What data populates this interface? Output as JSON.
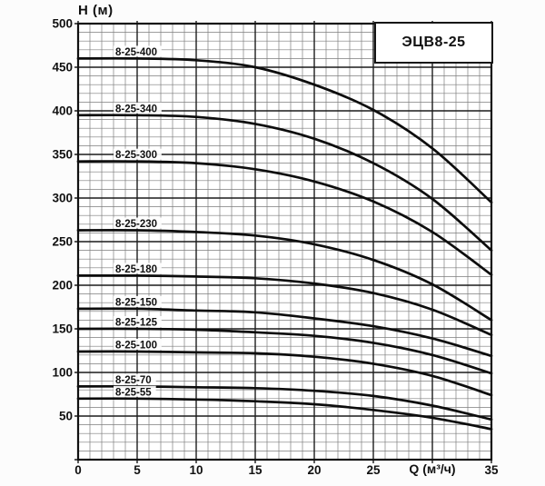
{
  "chart_data": {
    "type": "line",
    "title": "ЭЦВ8-25",
    "xlabel": "Q (м³/ч)",
    "ylabel": "H (м)",
    "xlim": [
      0,
      35
    ],
    "ylim": [
      0,
      500
    ],
    "x_major_step": 5,
    "x_minor_step": 1,
    "y_major_step": 50,
    "y_minor_step": 10,
    "grid": true,
    "legend_position": "labels-on-curves",
    "x_tick_labels": [
      {
        "value": 0,
        "label": "0"
      },
      {
        "value": 5,
        "label": "5"
      },
      {
        "value": 10,
        "label": "10"
      },
      {
        "value": 15,
        "label": "15"
      },
      {
        "value": 20,
        "label": "20"
      },
      {
        "value": 25,
        "label": "25"
      },
      {
        "value": 35,
        "label": "35"
      }
    ],
    "y_tick_labels": [
      {
        "value": 50,
        "label": "50"
      },
      {
        "value": 100,
        "label": "100"
      },
      {
        "value": 150,
        "label": "150"
      },
      {
        "value": 200,
        "label": "200"
      },
      {
        "value": 250,
        "label": "250"
      },
      {
        "value": 300,
        "label": "300"
      },
      {
        "value": 350,
        "label": "350"
      },
      {
        "value": 400,
        "label": "400"
      },
      {
        "value": 450,
        "label": "450"
      },
      {
        "value": 500,
        "label": "500"
      }
    ],
    "x": [
      0,
      5,
      10,
      15,
      20,
      25,
      30,
      35
    ],
    "series": [
      {
        "name": "8-25-400",
        "values": [
          460,
          460,
          458,
          450,
          430,
          401,
          357,
          295
        ]
      },
      {
        "name": "8-25-340",
        "values": [
          395,
          395,
          393,
          385,
          368,
          340,
          299,
          240
        ]
      },
      {
        "name": "8-25-300",
        "values": [
          342,
          342,
          340,
          333,
          319,
          296,
          261,
          212
        ]
      },
      {
        "name": "8-25-230",
        "values": [
          263,
          263,
          261,
          257,
          247,
          229,
          201,
          160
        ]
      },
      {
        "name": "8-25-180",
        "values": [
          211,
          211,
          210,
          208,
          202,
          191,
          172,
          143
        ]
      },
      {
        "name": "8-25-150",
        "values": [
          173,
          173,
          171,
          169,
          162,
          153,
          139,
          119
        ]
      },
      {
        "name": "8-25-125",
        "values": [
          150,
          150,
          149,
          146,
          142,
          134,
          120,
          99
        ]
      },
      {
        "name": "8-25-100",
        "values": [
          124,
          124,
          123,
          122,
          118,
          110,
          96,
          74
        ]
      },
      {
        "name": "8-25-70",
        "values": [
          84,
          84,
          83,
          82,
          79,
          73,
          62,
          46
        ]
      },
      {
        "name": "8-25-55",
        "values": [
          70,
          70,
          69,
          67,
          63.5,
          57,
          48,
          35
        ]
      }
    ],
    "colors": {
      "curve": "#0d0d0d",
      "grid_minor": "#7d7d7d",
      "grid_major": "#1c1c1c",
      "border": "#111111",
      "background": "#ffffff",
      "text": "#111111"
    }
  }
}
